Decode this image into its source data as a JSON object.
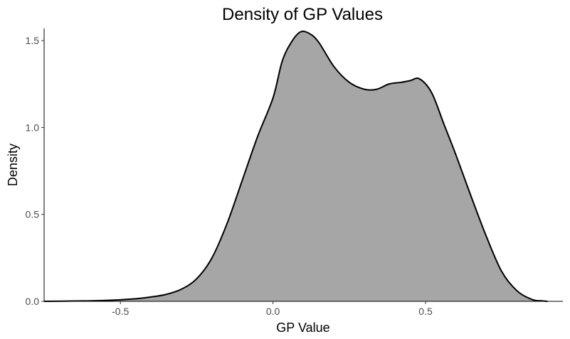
{
  "chart_data": {
    "type": "area",
    "title": "Density of GP Values",
    "xlabel": "GP Value",
    "ylabel": "Density",
    "xlim": [
      -0.75,
      0.95
    ],
    "ylim": [
      0,
      1.57
    ],
    "x_ticks": [
      {
        "value": -0.5,
        "label": "-0.5"
      },
      {
        "value": 0.0,
        "label": "0.0"
      },
      {
        "value": 0.5,
        "label": "0.5"
      }
    ],
    "y_ticks": [
      {
        "value": 0.0,
        "label": "0.0"
      },
      {
        "value": 0.5,
        "label": "0.5"
      },
      {
        "value": 1.0,
        "label": "1.0"
      },
      {
        "value": 1.5,
        "label": "1.5"
      }
    ],
    "grid": false,
    "series": [
      {
        "x": [
          -0.75,
          -0.65,
          -0.55,
          -0.45,
          -0.4,
          -0.35,
          -0.3,
          -0.25,
          -0.2,
          -0.15,
          -0.1,
          -0.05,
          0.0,
          0.03,
          0.06,
          0.09,
          0.12,
          0.15,
          0.2,
          0.25,
          0.3,
          0.34,
          0.38,
          0.42,
          0.45,
          0.48,
          0.52,
          0.56,
          0.6,
          0.65,
          0.7,
          0.75,
          0.8,
          0.85,
          0.88,
          0.9
        ],
        "y": [
          0.0,
          0.002,
          0.005,
          0.015,
          0.025,
          0.04,
          0.07,
          0.13,
          0.25,
          0.45,
          0.7,
          0.95,
          1.17,
          1.38,
          1.49,
          1.55,
          1.54,
          1.49,
          1.35,
          1.26,
          1.22,
          1.22,
          1.25,
          1.26,
          1.27,
          1.28,
          1.2,
          1.02,
          0.84,
          0.6,
          0.37,
          0.17,
          0.06,
          0.01,
          0.003,
          0.0
        ]
      }
    ],
    "colors": {
      "fill": "#a6a6a6",
      "line": "#000000",
      "axis": "#000000"
    }
  }
}
